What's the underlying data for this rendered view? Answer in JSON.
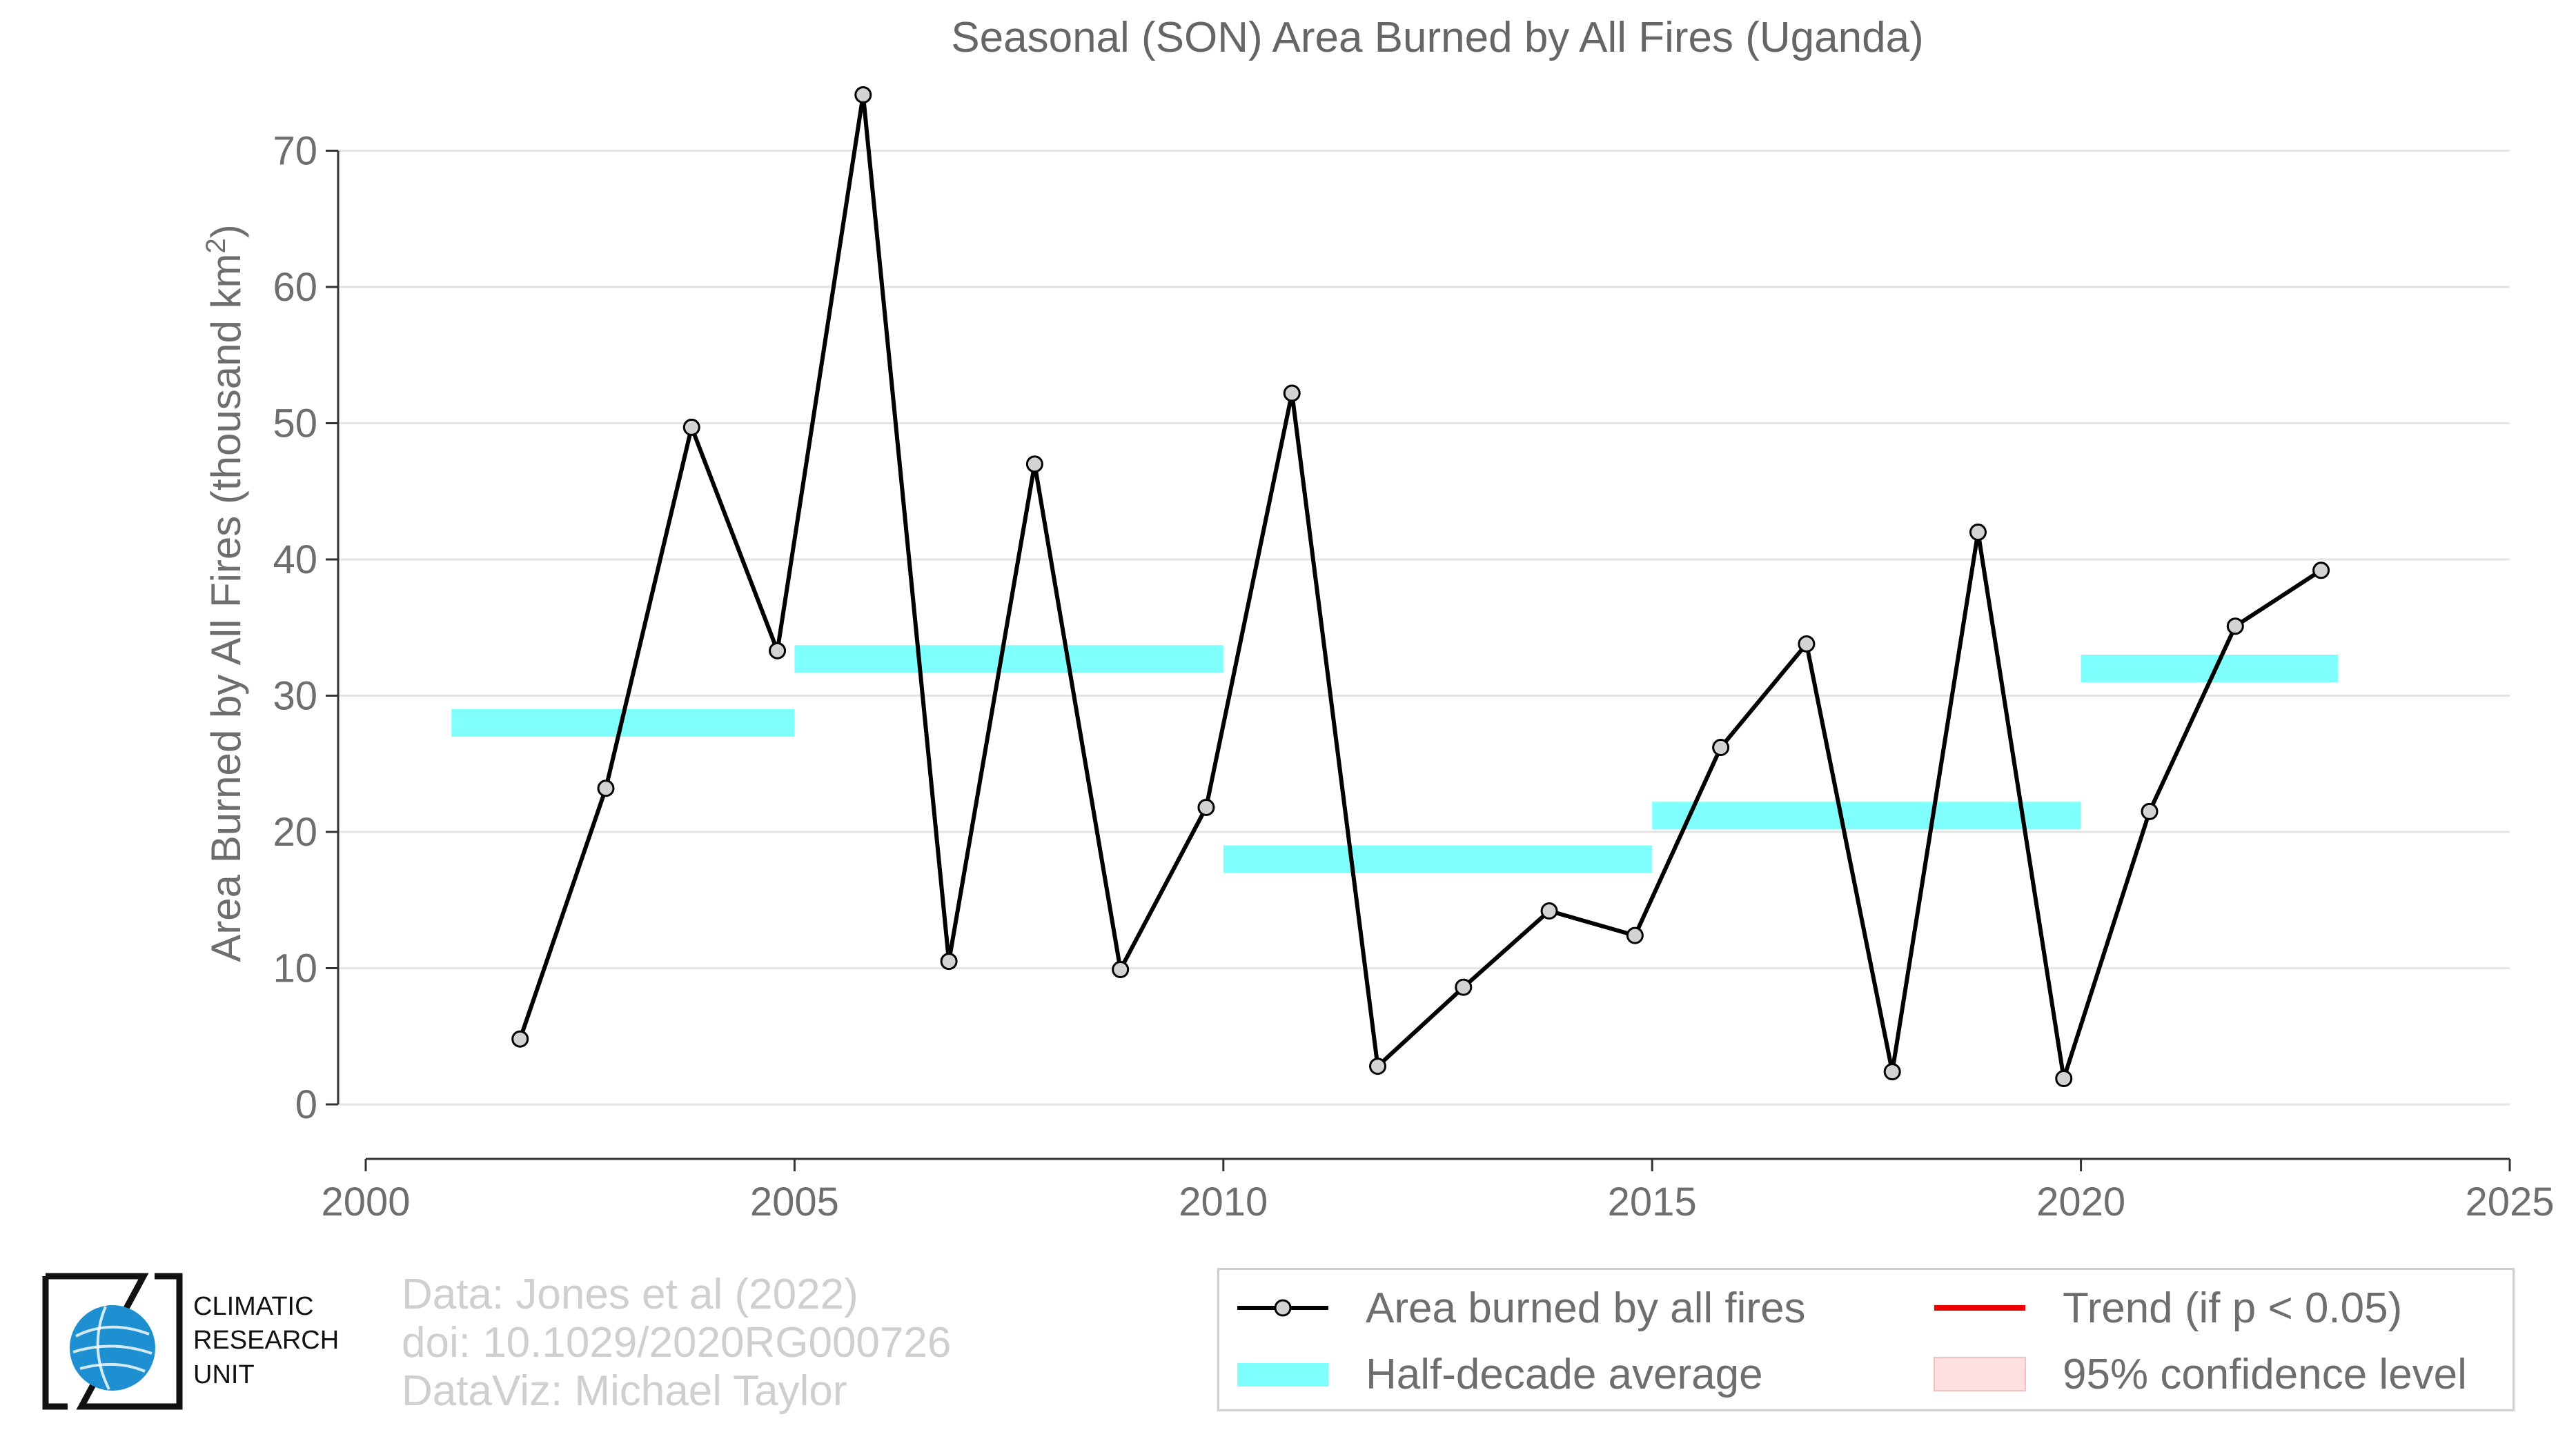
{
  "chart_data": {
    "type": "line",
    "title": "Seasonal (SON) Area Burned by All Fires (Uganda)",
    "ylabel": "Area Burned by All Fires (thousand km",
    "ylabel_sup": "2",
    "ylabel_close": ")",
    "xlim": [
      2000,
      2025
    ],
    "ylim": [
      -4,
      76
    ],
    "x_ticks": [
      2000,
      2005,
      2010,
      2015,
      2020,
      2025
    ],
    "y_ticks": [
      0,
      10,
      20,
      30,
      40,
      50,
      60,
      70
    ],
    "grid": "horizontal",
    "series": [
      {
        "name": "Area burned by all fires",
        "color": "#000000",
        "marker_fill": "#d3d3d3",
        "x": [
          2001.8,
          2002.8,
          2003.8,
          2004.8,
          2005.8,
          2006.8,
          2007.8,
          2008.8,
          2009.8,
          2010.8,
          2011.8,
          2012.8,
          2013.8,
          2014.8,
          2015.8,
          2016.8,
          2017.8,
          2018.8,
          2019.8,
          2020.8,
          2021.8,
          2022.8
        ],
        "y": [
          4.8,
          23.2,
          49.7,
          33.3,
          74.1,
          10.5,
          47.0,
          9.9,
          21.8,
          52.2,
          2.8,
          8.6,
          14.2,
          12.4,
          26.2,
          33.8,
          2.4,
          42.0,
          1.9,
          21.5,
          35.1,
          39.2
        ]
      }
    ],
    "half_decade_average": {
      "name": "Half-decade average",
      "color": "#80ffff",
      "segments": [
        {
          "x_start": 2001,
          "x_end": 2005,
          "value": 28.0
        },
        {
          "x_start": 2005,
          "x_end": 2010,
          "value": 32.7
        },
        {
          "x_start": 2010,
          "x_end": 2015,
          "value": 18.0
        },
        {
          "x_start": 2015,
          "x_end": 2020,
          "value": 21.2
        },
        {
          "x_start": 2020,
          "x_end": 2023,
          "value": 32.0
        }
      ]
    },
    "legend": {
      "placement": "bottom-right",
      "items": [
        {
          "label": "Area burned by all fires",
          "key": "line-marker",
          "color": "#000000"
        },
        {
          "label": "Trend (if p < 0.05)",
          "key": "line",
          "color": "#ee0000"
        },
        {
          "label": "Half-decade average",
          "key": "bar",
          "color": "#80ffff"
        },
        {
          "label": "95% confidence level",
          "key": "box",
          "color": "#ffe0e0"
        }
      ]
    }
  },
  "credits": {
    "line1": "Data: Jones et al (2022)",
    "line2": "doi: 10.1029/2020RG000726",
    "line3": "DataViz: Michael Taylor"
  },
  "logo": {
    "line1": "CLIMATIC",
    "line2": "RESEARCH",
    "line3": "UNIT",
    "globe_color": "#1e8fd0"
  }
}
